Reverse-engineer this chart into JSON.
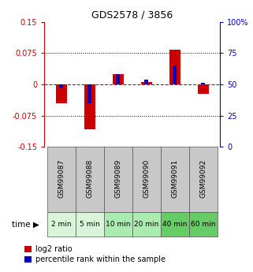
{
  "title": "GDS2578 / 3856",
  "samples": [
    "GSM99087",
    "GSM99088",
    "GSM99089",
    "GSM99090",
    "GSM99091",
    "GSM99092"
  ],
  "time_labels": [
    "2 min",
    "5 min",
    "10 min",
    "20 min",
    "40 min",
    "60 min"
  ],
  "log2_ratio": [
    -0.045,
    -0.108,
    0.025,
    0.005,
    0.083,
    -0.022
  ],
  "percentile_rank": [
    47,
    35,
    58,
    54,
    65,
    51
  ],
  "ylim": [
    -0.15,
    0.15
  ],
  "yticks_left": [
    -0.15,
    -0.075,
    0,
    0.075,
    0.15
  ],
  "ytick_labels_left": [
    "-0.15",
    "-0.075",
    "0",
    "0.075",
    "0.15"
  ],
  "yticks_right": [
    0,
    25,
    50,
    75,
    100
  ],
  "ytick_labels_right": [
    "0",
    "25",
    "50",
    "75",
    "100%"
  ],
  "color_red": "#cc0000",
  "color_blue": "#0000cc",
  "bg_label_gray": "#c8c8c8",
  "time_colors": [
    "#d8f5d8",
    "#d8f5d8",
    "#aaebb0",
    "#aaebb0",
    "#66cc66",
    "#66cc66"
  ],
  "legend_label_red": "log2 ratio",
  "legend_label_blue": "percentile rank within the sample"
}
